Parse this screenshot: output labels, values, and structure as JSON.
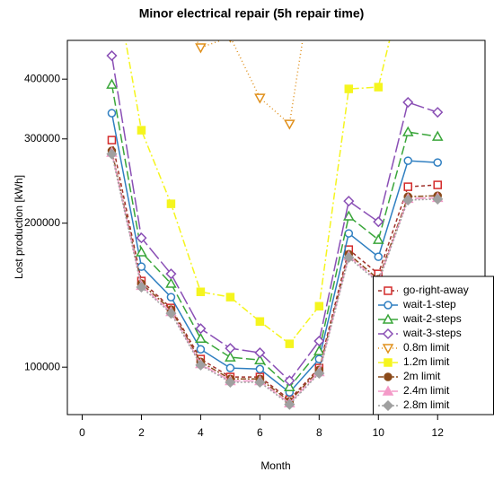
{
  "chart_data": {
    "type": "line",
    "title": "Minor electrical repair (5h repair time)",
    "xlabel": "Month",
    "ylabel": "Lost production [kWh]",
    "x": [
      1,
      2,
      3,
      4,
      5,
      6,
      7,
      8,
      9,
      10,
      11,
      12
    ],
    "xlim": [
      -0.5,
      13.6
    ],
    "xticks": [
      0,
      2,
      4,
      6,
      8,
      10,
      12
    ],
    "ylim": [
      79600,
      482000
    ],
    "yticks": [
      100000,
      200000,
      300000,
      400000
    ],
    "log_y": true,
    "legend": "bottom-right",
    "series": [
      {
        "name": "go-right-away",
        "color": "#d42a2a",
        "line_color": "#a0302a",
        "marker": "square",
        "filled": false,
        "dash": "4,3",
        "values": [
          298300,
          151400,
          133000,
          104000,
          95400,
          95400,
          85600,
          99600,
          176100,
          156700,
          238300,
          240400
        ]
      },
      {
        "name": "wait-1-step",
        "color": "#2f7fc1",
        "line_color": "#2f7fc1",
        "marker": "circle",
        "filled": false,
        "dash": "",
        "values": [
          339600,
          162200,
          140100,
          109000,
          99600,
          99100,
          88600,
          104000,
          190400,
          170100,
          270100,
          267800
        ]
      },
      {
        "name": "wait-2-steps",
        "color": "#3aa63a",
        "line_color": "#3aa63a",
        "marker": "triangle",
        "filled": false,
        "dash": "10,4",
        "values": [
          389900,
          173900,
          149500,
          114800,
          104900,
          103500,
          90900,
          108100,
          206700,
          184700,
          310100,
          303500
        ]
      },
      {
        "name": "wait-3-steps",
        "color": "#8a4fb5",
        "line_color": "#8a4fb5",
        "marker": "diamond",
        "filled": false,
        "dash": "16,4",
        "values": [
          447800,
          186300,
          156700,
          120400,
          109500,
          107200,
          93700,
          113400,
          222400,
          201300,
          357700,
          341000
        ]
      },
      {
        "name": "0.8m limit",
        "color": "#e0901c",
        "line_color": "#e0901c",
        "marker": "triangle-down",
        "filled": false,
        "dash": "1,3",
        "values": [
          null,
          null,
          600000,
          465600,
          490000,
          365500,
          322400,
          800000,
          null,
          null,
          null,
          null
        ]
      },
      {
        "name": "1.2m limit",
        "color": "#f5f51e",
        "line_color": "#f5f51e",
        "marker": "square",
        "filled": true,
        "dash": "8,3,2,3",
        "values": [
          700000,
          312800,
          219500,
          143700,
          140100,
          124600,
          111900,
          134100,
          381600,
          384900,
          700000,
          null
        ]
      },
      {
        "name": "2m limit",
        "color": "#8b4a1a",
        "line_color": "#8b4a1a",
        "marker": "circle",
        "filled": true,
        "dash": "6,2,2,2",
        "values": [
          283300,
          149500,
          131900,
          102600,
          94500,
          94500,
          84900,
          98700,
          172300,
          152700,
          227200,
          228200
        ]
      },
      {
        "name": "2.4m limit",
        "color": "#f49ac8",
        "line_color": "#f49ac8",
        "marker": "triangle",
        "filled": true,
        "dash": "12,3",
        "values": [
          281000,
          148000,
          130500,
          101600,
          93600,
          93600,
          84100,
          97700,
          170600,
          151200,
          225000,
          226000
        ]
      },
      {
        "name": "2.8m limit",
        "color": "#a0a0a0",
        "line_color": "#a0a0a0",
        "marker": "diamond",
        "filled": true,
        "dash": "2,2",
        "values": [
          279000,
          147000,
          129600,
          101000,
          93000,
          93000,
          83600,
          97100,
          169500,
          150300,
          223500,
          224500
        ]
      }
    ]
  }
}
